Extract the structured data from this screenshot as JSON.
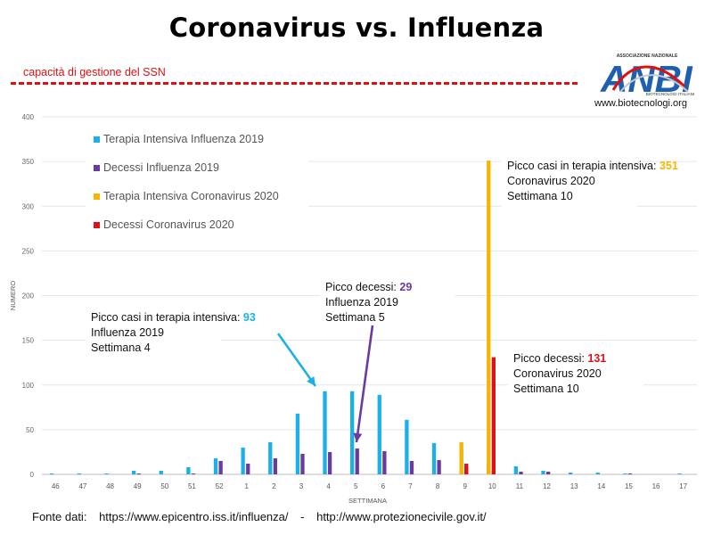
{
  "title": "Coronavirus vs. Influenza",
  "ssn_label": "capacità di gestione del SSN",
  "logo": {
    "text_top": "ASSOCIAZIONE NAZIONALE",
    "letters": "ANBI",
    "text_bottom": "BIOTECNOLOGI ITALIANI",
    "url": "www.biotecnologi.org"
  },
  "source": {
    "label": "Fonte dati:",
    "url1": "https://www.epicentro.iss.it/influenza/",
    "sep": "-",
    "url2": "http://www.protezionecivile.gov.it/"
  },
  "colors": {
    "flu_icu": "#1cb0e8",
    "flu_deaths": "#6a3aa0",
    "covid_icu": "#f7b500",
    "covid_deaths": "#e0101a",
    "ssn_line": "#e01010"
  },
  "chart_data": {
    "type": "bar",
    "xlabel": "SETTIMANA",
    "ylabel": "NUMERO",
    "ylim": [
      0,
      400
    ],
    "yticks": [
      0,
      50,
      100,
      150,
      200,
      250,
      300,
      350,
      400
    ],
    "grid": true,
    "legend_position": "top-left",
    "categories": [
      "46",
      "47",
      "48",
      "49",
      "50",
      "51",
      "52",
      "1",
      "2",
      "3",
      "4",
      "5",
      "6",
      "7",
      "8",
      "9",
      "10",
      "11",
      "12",
      "13",
      "14",
      "15",
      "16",
      "17"
    ],
    "series": [
      {
        "name": "Terapia Intensiva Influenza 2019",
        "color": "#1cb0e8",
        "values": [
          1,
          1,
          1,
          4,
          4,
          8,
          18,
          30,
          36,
          68,
          93,
          93,
          89,
          61,
          35,
          29,
          12,
          9,
          4,
          2,
          2,
          1,
          0,
          1
        ]
      },
      {
        "name": "Decessi Influenza 2019",
        "color": "#6a3aa0",
        "values": [
          0,
          0,
          0,
          1,
          0,
          1,
          15,
          12,
          18,
          23,
          25,
          29,
          26,
          15,
          16,
          9,
          4,
          3,
          3,
          0,
          0,
          1,
          0,
          0
        ]
      },
      {
        "name": "Terapia Intensiva Coronavirus 2020",
        "color": "#f7b500",
        "values": [
          0,
          0,
          0,
          0,
          0,
          0,
          0,
          0,
          0,
          0,
          0,
          0,
          0,
          0,
          0,
          36,
          351,
          0,
          0,
          0,
          0,
          0,
          0,
          0
        ]
      },
      {
        "name": "Decessi Coronavirus 2020",
        "color": "#e0101a",
        "values": [
          0,
          0,
          0,
          0,
          0,
          0,
          0,
          0,
          0,
          0,
          0,
          0,
          0,
          0,
          0,
          12,
          131,
          0,
          0,
          0,
          0,
          0,
          0,
          0
        ]
      }
    ],
    "annotations": [
      {
        "name": "flu-icu-peak",
        "target_series": 0,
        "target_category": "4",
        "peak_value": 93,
        "lines": [
          "Picco casi in terapia intensiva: ",
          "Influenza 2019",
          "Settimana 4"
        ],
        "value_text": "93",
        "value_color": "#1cb0e8",
        "arrow": true,
        "arrow_color": "#1cb0e8"
      },
      {
        "name": "flu-deaths-peak",
        "target_series": 1,
        "target_category": "5",
        "peak_value": 29,
        "lines": [
          "Picco decessi: ",
          "Influenza 2019",
          "Settimana 5"
        ],
        "value_text": "29",
        "value_color": "#6a3aa0",
        "arrow": true,
        "arrow_color": "#6a3aa0"
      },
      {
        "name": "covid-icu-peak",
        "target_series": 2,
        "target_category": "10",
        "peak_value": 351,
        "lines": [
          "Picco casi in terapia intensiva: ",
          "Coronavirus 2020",
          "Settimana 10"
        ],
        "value_text": "351",
        "value_color": "#f7b500",
        "arrow": false
      },
      {
        "name": "covid-deaths-peak",
        "target_series": 3,
        "target_category": "10",
        "peak_value": 131,
        "lines": [
          "Picco decessi: ",
          "Coronavirus 2020",
          "Settimana 10"
        ],
        "value_text": "131",
        "value_color": "#e0101a",
        "arrow": false
      }
    ]
  }
}
